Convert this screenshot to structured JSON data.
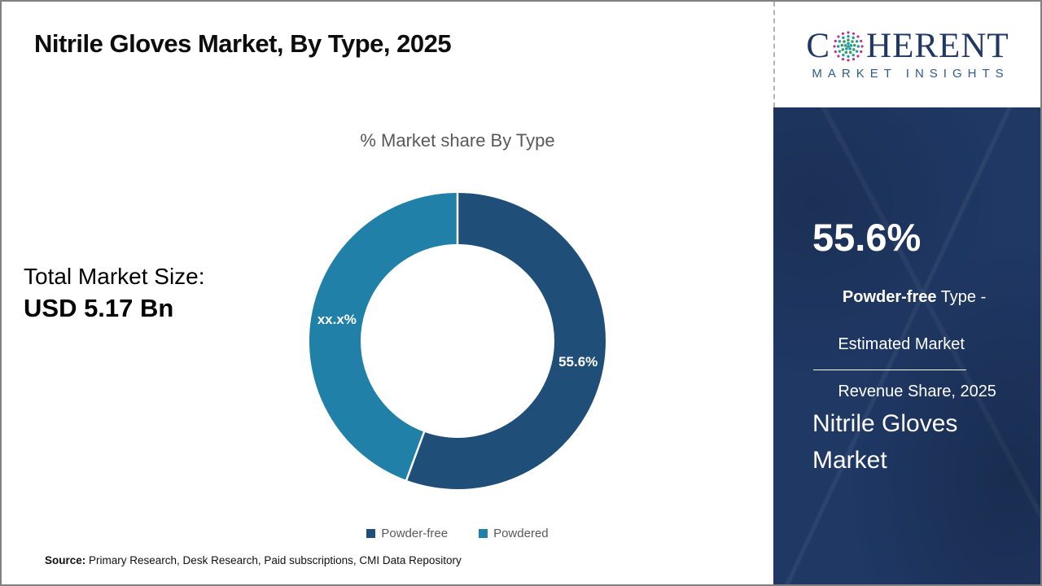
{
  "header": {
    "title": "Nitrile Gloves Market, By Type, 2025"
  },
  "logo": {
    "prefix": "C",
    "suffix": "HERENT",
    "subtitle": "MARKET INSIGHTS",
    "brand_navy": "#1F3864",
    "subtitle_blue": "#2E5B8F"
  },
  "left_panel": {
    "total_label": "Total Market Size:",
    "total_value": "USD 5.17 Bn"
  },
  "chart_data": {
    "type": "pie",
    "donut": true,
    "title": "% Market share By Type",
    "categories": [
      "Powder-free",
      "Powdered"
    ],
    "values": [
      55.6,
      44.4
    ],
    "slice_labels": [
      "55.6%",
      "xx.x%"
    ],
    "colors": [
      "#1F4E79",
      "#2080A8"
    ],
    "legend_position": "bottom",
    "start_angle_deg": 0,
    "direction": "clockwise"
  },
  "sidebar": {
    "stat_value": "55.6%",
    "stat_bold": " Powder-free",
    "stat_rest": " Type -",
    "stat_line2": "Estimated Market",
    "stat_line3": "Revenue Share, 2025",
    "market_name": "Nitrile Gloves Market",
    "bg_color": "#1F3864"
  },
  "footer": {
    "source_label": "Source:",
    "source_text": " Primary Research, Desk Research, Paid subscriptions, CMI Data Repository"
  }
}
